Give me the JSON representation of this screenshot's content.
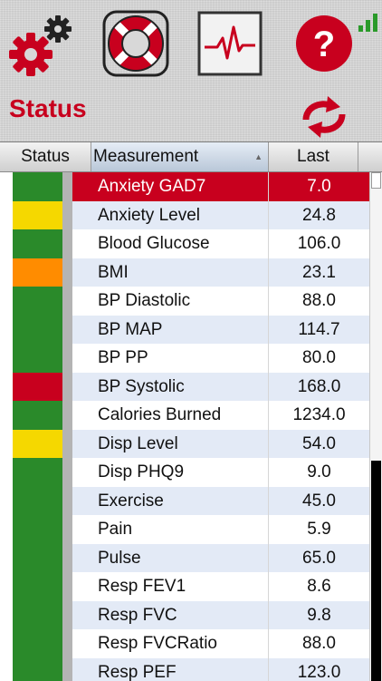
{
  "toolbar": {
    "settings_icon": "gears-icon",
    "help_lifebuoy_icon": "lifebuoy-icon",
    "monitor_icon": "heart-rate-icon",
    "help_icon": "question-icon",
    "help_glyph": "?"
  },
  "page_title": "Status",
  "table": {
    "headers": {
      "status": "Status",
      "measurement": "Measurement",
      "last": "Last",
      "sort_glyph": "▲"
    },
    "rows": [
      {
        "measurement": "Anxiety GAD7",
        "last": "7.0",
        "status_color": "#2a8a2a",
        "selected": true
      },
      {
        "measurement": "Anxiety Level",
        "last": "24.8",
        "status_color": "#f5d800"
      },
      {
        "measurement": "Blood Glucose",
        "last": "106.0",
        "status_color": "#2a8a2a"
      },
      {
        "measurement": "BMI",
        "last": "23.1",
        "status_color": "#ff8c00"
      },
      {
        "measurement": "BP Diastolic",
        "last": "88.0",
        "status_color": "#2a8a2a"
      },
      {
        "measurement": "BP MAP",
        "last": "114.7",
        "status_color": "#2a8a2a"
      },
      {
        "measurement": "BP PP",
        "last": "80.0",
        "status_color": "#2a8a2a"
      },
      {
        "measurement": "BP Systolic",
        "last": "168.0",
        "status_color": "#c8001e"
      },
      {
        "measurement": "Calories Burned",
        "last": "1234.0",
        "status_color": "#2a8a2a"
      },
      {
        "measurement": "Disp Level",
        "last": "54.0",
        "status_color": "#f5d800"
      },
      {
        "measurement": "Disp PHQ9",
        "last": "9.0",
        "status_color": "#2a8a2a"
      },
      {
        "measurement": "Exercise",
        "last": "45.0",
        "status_color": "#2a8a2a"
      },
      {
        "measurement": "Pain",
        "last": "5.9",
        "status_color": "#2a8a2a"
      },
      {
        "measurement": "Pulse",
        "last": "65.0",
        "status_color": "#2a8a2a"
      },
      {
        "measurement": "Resp FEV1",
        "last": "8.6",
        "status_color": "#2a8a2a"
      },
      {
        "measurement": "Resp FVC",
        "last": "9.8",
        "status_color": "#2a8a2a"
      },
      {
        "measurement": "Resp FVCRatio",
        "last": "88.0",
        "status_color": "#2a8a2a"
      },
      {
        "measurement": "Resp PEF",
        "last": "123.0",
        "status_color": "#2a8a2a"
      }
    ]
  },
  "colors": {
    "accent": "#c8001e",
    "selected_row": "#c8001e",
    "alt_row": "#e3eaf6"
  }
}
